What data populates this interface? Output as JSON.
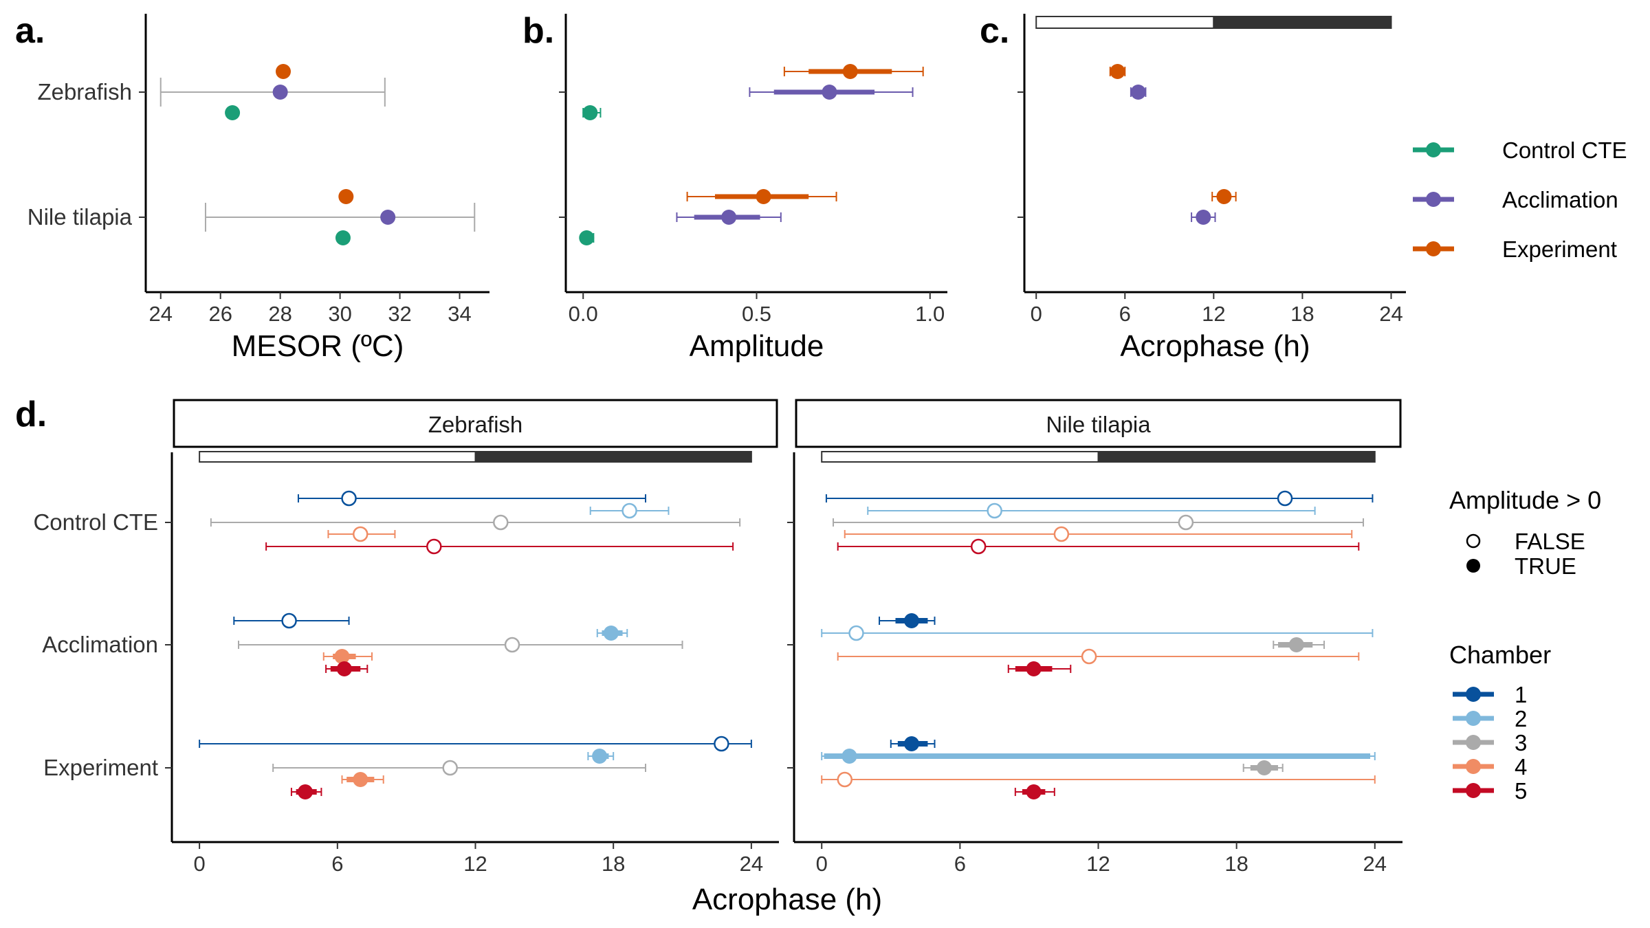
{
  "colors": {
    "control_cte": "#1b9e77",
    "acclimation": "#6a5aad",
    "experiment": "#d35400",
    "chamber_1": "#08519c",
    "chamber_2": "#7fb8dc",
    "chamber_3": "#aaaaaa",
    "chamber_4": "#f08c64",
    "chamber_5": "#c30a24",
    "mesor_range": "#aaaaaa",
    "dark_phase": "#333333"
  },
  "legend_treatment": {
    "items": [
      {
        "label": "Control CTE",
        "color_key": "control_cte"
      },
      {
        "label": "Acclimation",
        "color_key": "acclimation"
      },
      {
        "label": "Experiment",
        "color_key": "experiment"
      }
    ]
  },
  "legend_amplitude": {
    "title": "Amplitude > 0",
    "items": [
      {
        "label": "FALSE",
        "filled": false
      },
      {
        "label": "TRUE",
        "filled": true
      }
    ]
  },
  "legend_chamber": {
    "title": "Chamber",
    "items": [
      {
        "label": "1",
        "color_key": "chamber_1"
      },
      {
        "label": "2",
        "color_key": "chamber_2"
      },
      {
        "label": "3",
        "color_key": "chamber_3"
      },
      {
        "label": "4",
        "color_key": "chamber_4"
      },
      {
        "label": "5",
        "color_key": "chamber_5"
      }
    ]
  },
  "chart_data": [
    {
      "panel": "a.",
      "type": "scatter",
      "xlabel": "MESOR (ºC)",
      "xlim": [
        23.5,
        35
      ],
      "xticks": [
        24,
        26,
        28,
        30,
        32,
        34
      ],
      "categories": [
        "Zebrafish",
        "Nile tilapia"
      ],
      "temperature_range": [
        {
          "category": "Zebrafish",
          "min": 24,
          "max": 31.5
        },
        {
          "category": "Nile tilapia",
          "min": 25.5,
          "max": 34.5
        }
      ],
      "series": [
        {
          "name": "Experiment",
          "color_key": "experiment",
          "values": [
            {
              "category": "Zebrafish",
              "est": 28.1,
              "ci_inner": [
                27.95,
                28.25
              ]
            },
            {
              "category": "Nile tilapia",
              "est": 30.2,
              "ci_inner": [
                30.05,
                30.35
              ]
            }
          ]
        },
        {
          "name": "Acclimation",
          "color_key": "acclimation",
          "values": [
            {
              "category": "Zebrafish",
              "est": 28.0,
              "ci_inner": [
                27.85,
                28.15
              ]
            },
            {
              "category": "Nile tilapia",
              "est": 31.6,
              "ci_inner": [
                31.45,
                31.75
              ]
            }
          ]
        },
        {
          "name": "Control CTE",
          "color_key": "control_cte",
          "values": [
            {
              "category": "Zebrafish",
              "est": 26.4
            },
            {
              "category": "Nile tilapia",
              "est": 30.1
            }
          ]
        }
      ]
    },
    {
      "panel": "b.",
      "type": "scatter",
      "xlabel": "Amplitude",
      "xlim": [
        -0.05,
        1.05
      ],
      "xticks": [
        0.0,
        0.5,
        1.0
      ],
      "xtick_labels": [
        "0.0",
        "0.5",
        "1.0"
      ],
      "categories": [
        "Zebrafish",
        "Nile tilapia"
      ],
      "series": [
        {
          "name": "Experiment",
          "color_key": "experiment",
          "values": [
            {
              "category": "Zebrafish",
              "est": 0.77,
              "ci_inner": [
                0.65,
                0.89
              ],
              "ci_outer": [
                0.58,
                0.98
              ]
            },
            {
              "category": "Nile tilapia",
              "est": 0.52,
              "ci_inner": [
                0.38,
                0.65
              ],
              "ci_outer": [
                0.3,
                0.73
              ]
            }
          ]
        },
        {
          "name": "Acclimation",
          "color_key": "acclimation",
          "values": [
            {
              "category": "Zebrafish",
              "est": 0.71,
              "ci_inner": [
                0.55,
                0.84
              ],
              "ci_outer": [
                0.48,
                0.95
              ]
            },
            {
              "category": "Nile tilapia",
              "est": 0.42,
              "ci_inner": [
                0.32,
                0.51
              ],
              "ci_outer": [
                0.27,
                0.57
              ]
            }
          ]
        },
        {
          "name": "Control CTE",
          "color_key": "control_cte",
          "values": [
            {
              "category": "Zebrafish",
              "est": 0.02,
              "ci_outer": [
                0.0,
                0.05
              ]
            },
            {
              "category": "Nile tilapia",
              "est": 0.01,
              "ci_outer": [
                0.0,
                0.03
              ]
            }
          ]
        }
      ]
    },
    {
      "panel": "c.",
      "type": "scatter",
      "xlabel": "Acrophase (h)",
      "xlim": [
        -0.8,
        25
      ],
      "xticks": [
        0,
        6,
        12,
        18,
        24
      ],
      "light_dark_bar": {
        "light": [
          0,
          12
        ],
        "dark": [
          12,
          24
        ]
      },
      "categories": [
        "Zebrafish",
        "Nile tilapia"
      ],
      "series": [
        {
          "name": "Experiment",
          "color_key": "experiment",
          "values": [
            {
              "category": "Zebrafish",
              "est": 5.5,
              "ci_outer": [
                5.0,
                6.0
              ]
            },
            {
              "category": "Nile tilapia",
              "est": 12.7,
              "ci_outer": [
                11.9,
                13.5
              ]
            }
          ]
        },
        {
          "name": "Acclimation",
          "color_key": "acclimation",
          "values": [
            {
              "category": "Zebrafish",
              "est": 6.9,
              "ci_outer": [
                6.4,
                7.4
              ]
            },
            {
              "category": "Nile tilapia",
              "est": 11.3,
              "ci_outer": [
                10.5,
                12.1
              ]
            }
          ]
        }
      ]
    },
    {
      "panel": "d.",
      "type": "scatter",
      "xlabel": "Acrophase (h)",
      "xlim": [
        -1.2,
        25.2
      ],
      "xticks": [
        0,
        6,
        12,
        18,
        24
      ],
      "light_dark_bar": {
        "light": [
          0,
          12
        ],
        "dark": [
          12,
          24
        ]
      },
      "categories": [
        "Control CTE",
        "Acclimation",
        "Experiment"
      ],
      "facets": [
        {
          "label": "Zebrafish",
          "points": [
            {
              "category": "Control CTE",
              "chamber": 1,
              "est": 6.5,
              "ci_outer": [
                4.3,
                19.4
              ],
              "amplitude_gt_0": false
            },
            {
              "category": "Control CTE",
              "chamber": 2,
              "est": 18.7,
              "ci_outer": [
                17.0,
                20.4
              ],
              "amplitude_gt_0": false
            },
            {
              "category": "Control CTE",
              "chamber": 3,
              "est": 13.1,
              "ci_outer": [
                0.5,
                23.5
              ],
              "amplitude_gt_0": false
            },
            {
              "category": "Control CTE",
              "chamber": 4,
              "est": 7.0,
              "ci_outer": [
                5.6,
                8.5
              ],
              "amplitude_gt_0": false
            },
            {
              "category": "Control CTE",
              "chamber": 5,
              "est": 10.2,
              "ci_outer": [
                2.9,
                23.2
              ],
              "amplitude_gt_0": false
            },
            {
              "category": "Acclimation",
              "chamber": 1,
              "est": 3.9,
              "ci_outer": [
                1.5,
                6.5
              ],
              "amplitude_gt_0": false
            },
            {
              "category": "Acclimation",
              "chamber": 2,
              "est": 17.9,
              "ci_inner": [
                17.5,
                18.4
              ],
              "ci_outer": [
                17.3,
                18.6
              ],
              "amplitude_gt_0": true
            },
            {
              "category": "Acclimation",
              "chamber": 3,
              "est": 13.6,
              "ci_outer": [
                1.7,
                21.0
              ],
              "amplitude_gt_0": false
            },
            {
              "category": "Acclimation",
              "chamber": 4,
              "est": 6.2,
              "ci_inner": [
                5.8,
                6.8
              ],
              "ci_outer": [
                5.4,
                7.5
              ],
              "amplitude_gt_0": true
            },
            {
              "category": "Acclimation",
              "chamber": 5,
              "est": 6.3,
              "ci_inner": [
                5.7,
                7.0
              ],
              "ci_outer": [
                5.5,
                7.3
              ],
              "amplitude_gt_0": true
            },
            {
              "category": "Experiment",
              "chamber": 1,
              "est": 22.7,
              "ci_outer": [
                0.0,
                24.0
              ],
              "amplitude_gt_0": false
            },
            {
              "category": "Experiment",
              "chamber": 2,
              "est": 17.4,
              "ci_inner": [
                17.1,
                17.8
              ],
              "ci_outer": [
                16.9,
                18.0
              ],
              "amplitude_gt_0": true
            },
            {
              "category": "Experiment",
              "chamber": 3,
              "est": 10.9,
              "ci_outer": [
                3.2,
                19.4
              ],
              "amplitude_gt_0": false
            },
            {
              "category": "Experiment",
              "chamber": 4,
              "est": 7.0,
              "ci_inner": [
                6.4,
                7.6
              ],
              "ci_outer": [
                6.2,
                8.0
              ],
              "amplitude_gt_0": true
            },
            {
              "category": "Experiment",
              "chamber": 5,
              "est": 4.6,
              "ci_inner": [
                4.2,
                5.1
              ],
              "ci_outer": [
                4.0,
                5.3
              ],
              "amplitude_gt_0": true
            }
          ]
        },
        {
          "label": "Nile tilapia",
          "points": [
            {
              "category": "Control CTE",
              "chamber": 1,
              "est": 20.1,
              "ci_outer": [
                0.2,
                23.9
              ],
              "amplitude_gt_0": false
            },
            {
              "category": "Control CTE",
              "chamber": 2,
              "est": 7.5,
              "ci_outer": [
                2.0,
                21.4
              ],
              "amplitude_gt_0": false
            },
            {
              "category": "Control CTE",
              "chamber": 3,
              "est": 15.8,
              "ci_outer": [
                0.5,
                23.5
              ],
              "amplitude_gt_0": false
            },
            {
              "category": "Control CTE",
              "chamber": 4,
              "est": 10.4,
              "ci_outer": [
                1.0,
                23.0
              ],
              "amplitude_gt_0": false
            },
            {
              "category": "Control CTE",
              "chamber": 5,
              "est": 6.8,
              "ci_outer": [
                0.7,
                23.3
              ],
              "amplitude_gt_0": false
            },
            {
              "category": "Acclimation",
              "chamber": 1,
              "est": 3.9,
              "ci_inner": [
                3.2,
                4.6
              ],
              "ci_outer": [
                2.5,
                4.9
              ],
              "amplitude_gt_0": true
            },
            {
              "category": "Acclimation",
              "chamber": 2,
              "est": 1.5,
              "ci_outer": [
                0.0,
                23.9
              ],
              "amplitude_gt_0": false
            },
            {
              "category": "Acclimation",
              "chamber": 3,
              "est": 20.6,
              "ci_inner": [
                19.8,
                21.3
              ],
              "ci_outer": [
                19.6,
                21.8
              ],
              "amplitude_gt_0": true
            },
            {
              "category": "Acclimation",
              "chamber": 4,
              "est": 11.6,
              "ci_outer": [
                0.7,
                23.3
              ],
              "amplitude_gt_0": false
            },
            {
              "category": "Acclimation",
              "chamber": 5,
              "est": 9.2,
              "ci_inner": [
                8.4,
                10.0
              ],
              "ci_outer": [
                8.1,
                10.8
              ],
              "amplitude_gt_0": true
            },
            {
              "category": "Experiment",
              "chamber": 1,
              "est": 3.9,
              "ci_inner": [
                3.3,
                4.6
              ],
              "ci_outer": [
                3.0,
                4.9
              ],
              "amplitude_gt_0": true
            },
            {
              "category": "Experiment",
              "chamber": 2,
              "est": 1.2,
              "ci_inner": [
                0.1,
                23.8
              ],
              "ci_outer": [
                0.0,
                24.0
              ],
              "amplitude_gt_0": true
            },
            {
              "category": "Experiment",
              "chamber": 3,
              "est": 19.2,
              "ci_inner": [
                18.6,
                19.8
              ],
              "ci_outer": [
                18.3,
                20.0
              ],
              "amplitude_gt_0": true
            },
            {
              "category": "Experiment",
              "chamber": 4,
              "est": 1.0,
              "ci_outer": [
                0.0,
                24.0
              ],
              "amplitude_gt_0": false
            },
            {
              "category": "Experiment",
              "chamber": 5,
              "est": 9.2,
              "ci_inner": [
                8.7,
                9.7
              ],
              "ci_outer": [
                8.4,
                10.1
              ],
              "amplitude_gt_0": true
            }
          ]
        }
      ]
    }
  ]
}
